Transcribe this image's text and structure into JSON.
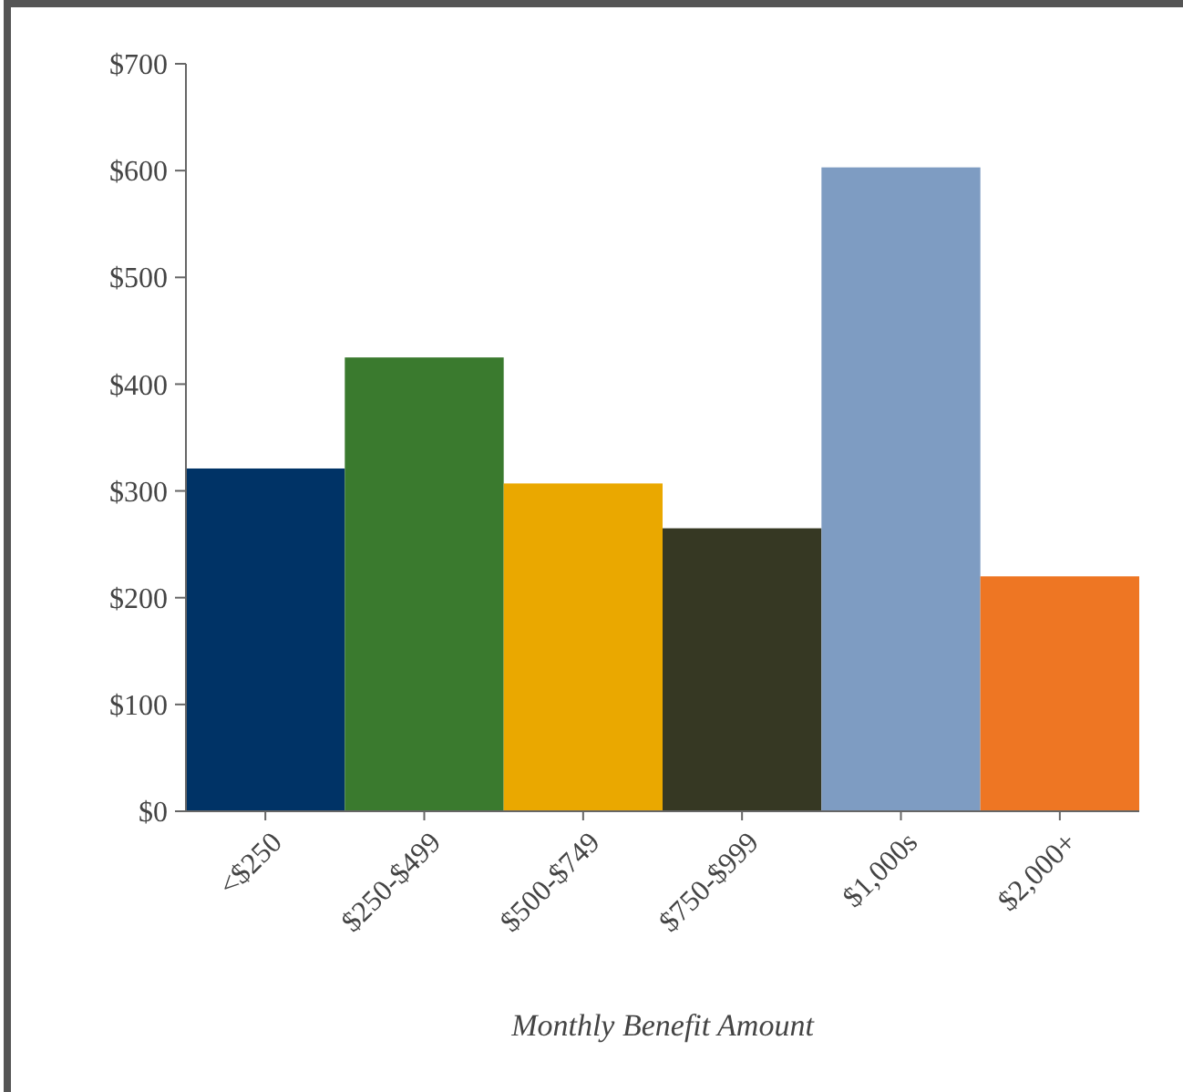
{
  "chart_data": {
    "type": "bar",
    "xlabel": "Monthly Benefit Amount",
    "categories": [
      "<$250",
      "$250-$499",
      "$500-$749",
      "$750-$999",
      "$1,000s",
      "$2,000+"
    ],
    "values": [
      321,
      425,
      307,
      265,
      603,
      220
    ],
    "colors": [
      "#003366",
      "#3a7a2e",
      "#eaa800",
      "#363823",
      "#7e9cc2",
      "#ee7623"
    ],
    "ylim": [
      0,
      700
    ],
    "yticks": [
      {
        "value": 0,
        "label": "$0"
      },
      {
        "value": 100,
        "label": "$100"
      },
      {
        "value": 200,
        "label": "$200"
      },
      {
        "value": 300,
        "label": "$300"
      },
      {
        "value": 400,
        "label": "$400"
      },
      {
        "value": 500,
        "label": "$500"
      },
      {
        "value": 600,
        "label": "$600"
      },
      {
        "value": 700,
        "label": "$700"
      }
    ],
    "grid": false
  }
}
